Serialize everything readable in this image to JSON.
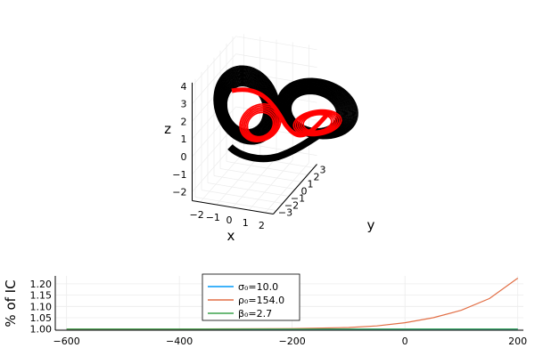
{
  "chart_data": [
    {
      "type": "line",
      "projection": "3d",
      "xlabel": "x",
      "ylabel": "y",
      "zlabel": "z",
      "x_ticks": [
        "−2",
        "−1",
        "0",
        "1",
        "2"
      ],
      "y_ticks": [
        "−3",
        "−2",
        "−1",
        "0",
        "1",
        "2",
        "3"
      ],
      "z_ticks": [
        "−2",
        "−1",
        "0",
        "1",
        "2",
        "3",
        "4"
      ],
      "xlim": [
        -2.5,
        2.5
      ],
      "ylim": [
        -3.5,
        3.5
      ],
      "zlim": [
        -2.5,
        4.2
      ],
      "grid": true,
      "series": [
        {
          "color": "#000000",
          "description": "ensemble trajectories (Lorenz-like butterfly attractor)"
        },
        {
          "color": "#ff0000",
          "description": "reference trajectory"
        }
      ]
    },
    {
      "type": "line",
      "xlabel": "",
      "ylabel": "% of IC",
      "xlim": [
        -620,
        210
      ],
      "ylim": [
        0.995,
        1.235
      ],
      "x_ticks": [
        "−600",
        "−400",
        "−200",
        "0",
        "200"
      ],
      "y_ticks": [
        "1.00",
        "1.05",
        "1.10",
        "1.15",
        "1.20"
      ],
      "grid": true,
      "legend_position": "top-center",
      "series": [
        {
          "name": "σ₀=10.0",
          "color": "#009af9",
          "x": [
            -600,
            -400,
            -200,
            0,
            200
          ],
          "values": [
            1.0,
            1.0,
            1.0,
            1.0,
            1.0
          ]
        },
        {
          "name": "ρ₀=154.0",
          "color": "#e26f46",
          "x": [
            -600,
            -500,
            -400,
            -300,
            -200,
            -100,
            -50,
            0,
            50,
            100,
            150,
            200
          ],
          "values": [
            1.0,
            1.0,
            1.0,
            1.001,
            1.002,
            1.007,
            1.014,
            1.028,
            1.05,
            1.083,
            1.135,
            1.225
          ]
        },
        {
          "name": "β₀=2.7",
          "color": "#3da44d",
          "x": [
            -600,
            -400,
            -200,
            0,
            200
          ],
          "values": [
            1.0,
            1.0,
            1.0,
            1.0,
            1.0
          ]
        }
      ]
    }
  ]
}
